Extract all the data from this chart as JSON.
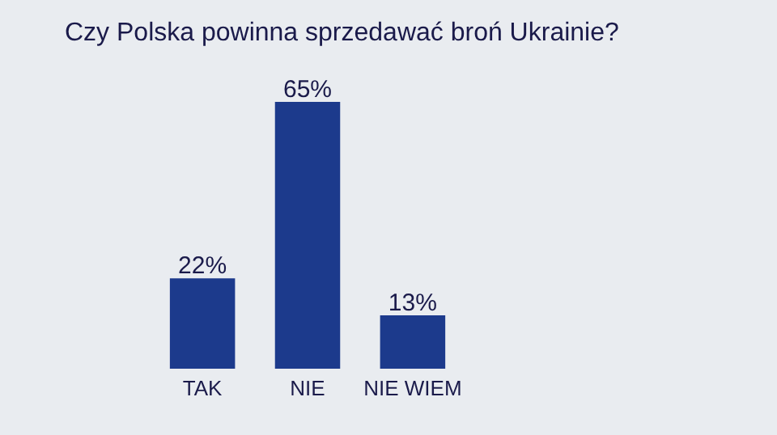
{
  "chart_data": {
    "type": "bar",
    "title": "Czy Polska powinna sprzedawać broń Ukrainie?",
    "categories": [
      "TAK",
      "NIE",
      "NIE WIEM"
    ],
    "values": [
      22,
      65,
      13
    ],
    "value_labels": [
      "22%",
      "65%",
      "13%"
    ],
    "color": "#1c3a8c"
  }
}
